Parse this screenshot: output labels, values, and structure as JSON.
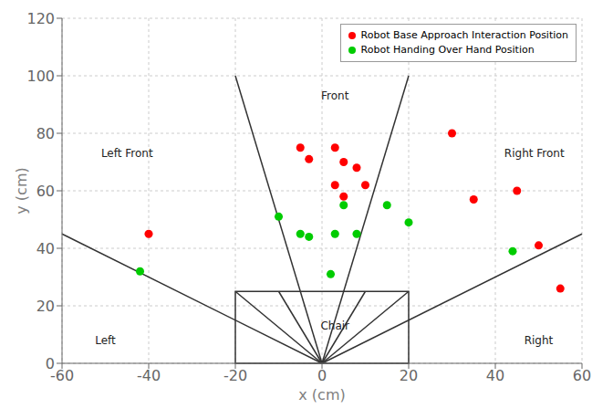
{
  "chart_data": {
    "type": "scatter",
    "xlabel": "x (cm)",
    "ylabel": "y (cm)",
    "xlim": [
      -60,
      60
    ],
    "ylim": [
      0,
      120
    ],
    "xticks": [
      -60,
      -40,
      -20,
      0,
      20,
      40,
      60
    ],
    "yticks": [
      0,
      20,
      40,
      60,
      80,
      100,
      120
    ],
    "grid": true,
    "legend": "upper right",
    "series": [
      {
        "name": "Robot Base Approach Interaction Position",
        "color": "#ff0000",
        "x": [
          -5,
          -3,
          3,
          5,
          8,
          3,
          5,
          10,
          30,
          45,
          35,
          50,
          55,
          -40
        ],
        "y": [
          75,
          71,
          75,
          70,
          68,
          62,
          58,
          62,
          80,
          60,
          57,
          41,
          26,
          45
        ]
      },
      {
        "name": "Robot Handing Over Hand Position",
        "color": "#00cc00",
        "x": [
          -10,
          -5,
          -3,
          3,
          8,
          5,
          15,
          2,
          20,
          44,
          -42
        ],
        "y": [
          51,
          45,
          44,
          45,
          45,
          55,
          55,
          31,
          49,
          39,
          32
        ]
      }
    ],
    "lines": [
      {
        "x": [
          -20,
          0
        ],
        "y": [
          100,
          0
        ],
        "color": "#333333"
      },
      {
        "x": [
          20,
          0
        ],
        "y": [
          100,
          0
        ],
        "color": "#333333"
      },
      {
        "x": [
          -60,
          0
        ],
        "y": [
          45,
          0
        ],
        "color": "#333333"
      },
      {
        "x": [
          60,
          0
        ],
        "y": [
          45,
          0
        ],
        "color": "#333333"
      },
      {
        "x": [
          -10,
          0
        ],
        "y": [
          25,
          0
        ],
        "color": "#333333"
      },
      {
        "x": [
          10,
          0
        ],
        "y": [
          25,
          0
        ],
        "color": "#333333"
      },
      {
        "x": [
          -20,
          0
        ],
        "y": [
          25,
          0
        ],
        "color": "#333333"
      },
      {
        "x": [
          20,
          0
        ],
        "y": [
          25,
          0
        ],
        "color": "#333333"
      }
    ],
    "rectangles": [
      {
        "x": -20,
        "y": 0,
        "width": 40,
        "height": 25,
        "color": "#333333"
      }
    ],
    "annotations": [
      {
        "text": "Front",
        "x": 3,
        "y": 93
      },
      {
        "text": "Left Front",
        "x": -45,
        "y": 73
      },
      {
        "text": "Right Front",
        "x": 49,
        "y": 73
      },
      {
        "text": "Left",
        "x": -50,
        "y": 8
      },
      {
        "text": "Right",
        "x": 50,
        "y": 8
      },
      {
        "text": "Chair",
        "x": 3,
        "y": 13
      }
    ]
  }
}
